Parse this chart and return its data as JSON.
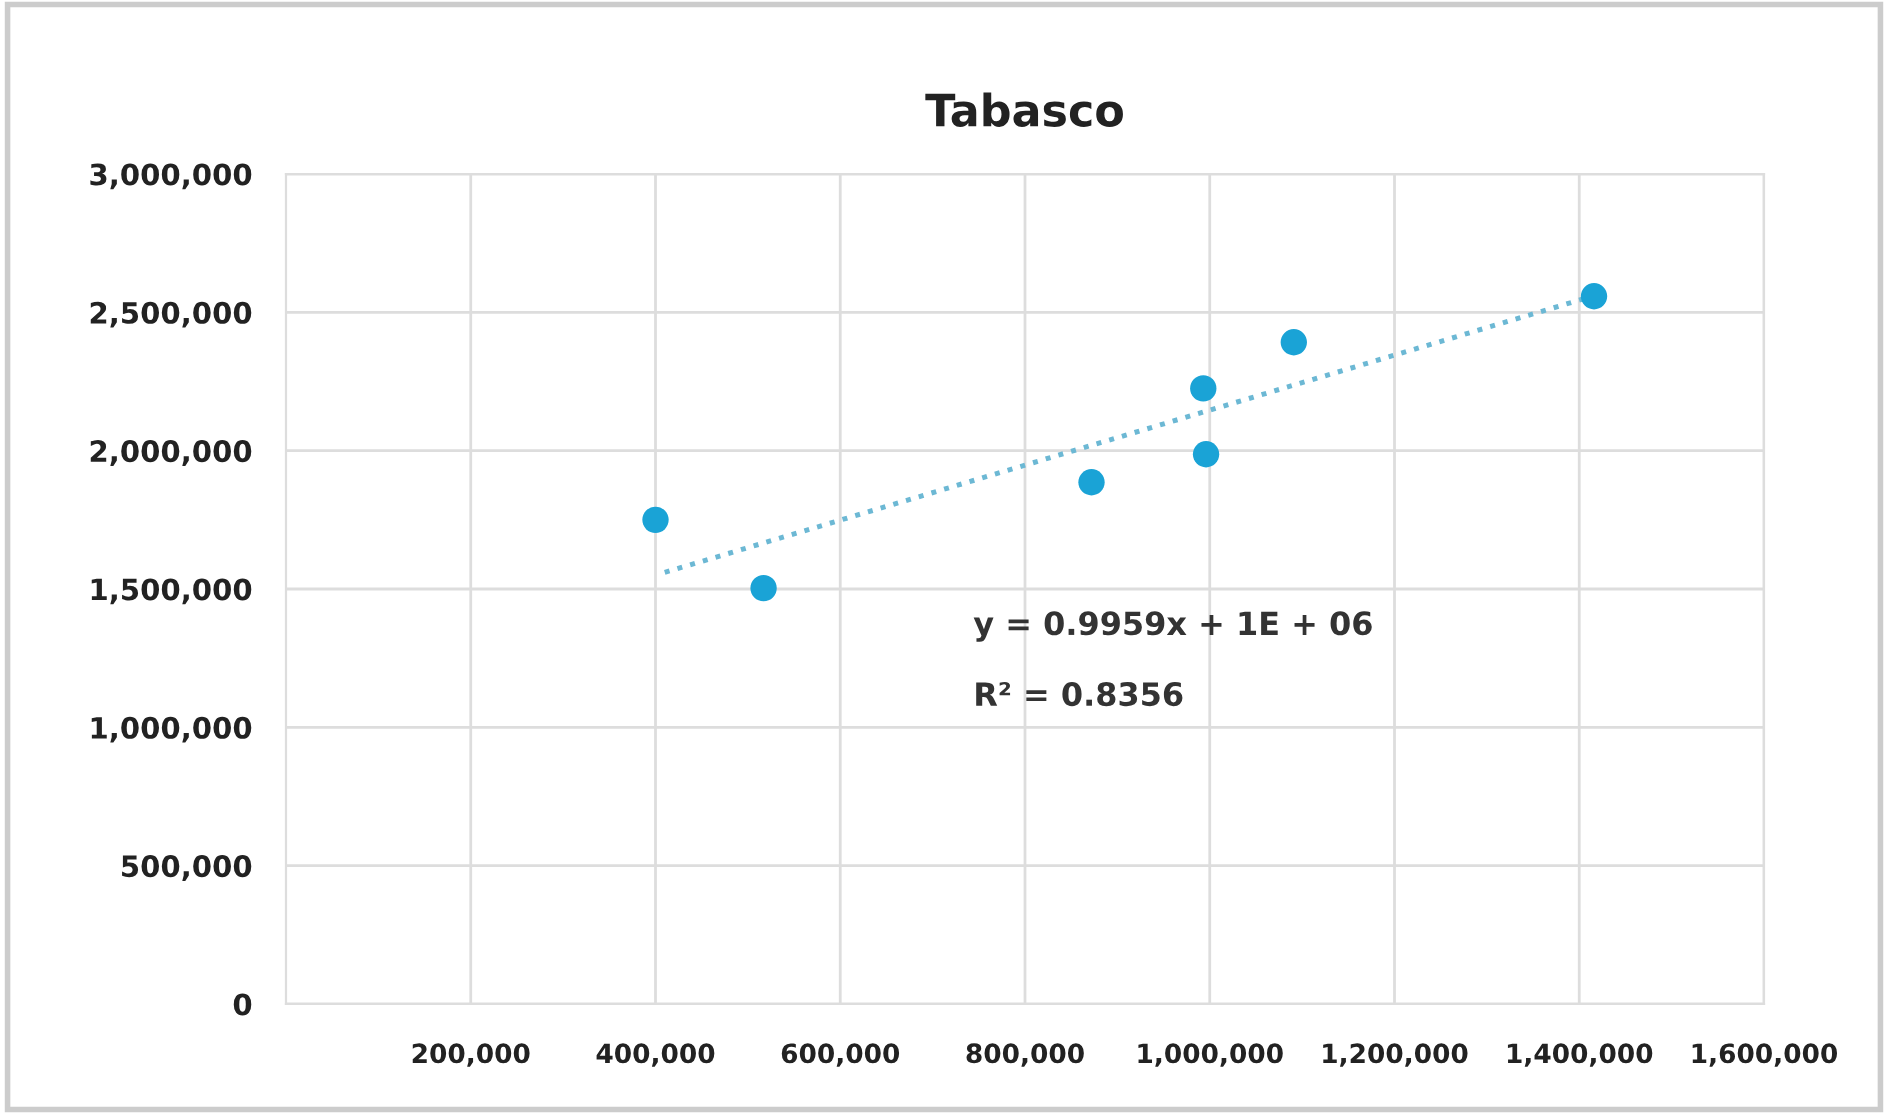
{
  "chart_data": {
    "type": "scatter",
    "title": "Tabasco",
    "series": [
      {
        "color": "#1aa3d6",
        "marker": "circle",
        "x": [
          400000,
          517000,
          872000,
          993000,
          996000,
          1091000,
          1416000
        ],
        "values": [
          1750000,
          1503000,
          1886000,
          2225000,
          1987000,
          2392000,
          2558000
        ]
      },
      {
        "type": "line",
        "color": "#6cb8d4",
        "marker": "none",
        "line_style": "dotted",
        "x": [
          410000,
          1416000
        ],
        "values": [
          1560000,
          2560000
        ]
      }
    ],
    "annotations": [
      "y = 0.9959x + 1E + 06",
      "R² = 0.8356"
    ],
    "xlim": [
      0,
      1600000
    ],
    "xticks": [
      {
        "value": 200000,
        "label": "200,000"
      },
      {
        "value": 400000,
        "label": "400,000"
      },
      {
        "value": 600000,
        "label": "600,000"
      },
      {
        "value": 800000,
        "label": "800,000"
      },
      {
        "value": 1000000,
        "label": "1,000,000"
      },
      {
        "value": 1200000,
        "label": "1,200,000"
      },
      {
        "value": 1400000,
        "label": "1,400,000"
      },
      {
        "value": 1600000,
        "label": "1,600,000"
      }
    ],
    "ylim": [
      0,
      3000000
    ],
    "yticks": [
      0,
      {
        "value": 500000,
        "label": "500,000"
      },
      {
        "value": 1000000,
        "label": "1,000,000"
      },
      {
        "value": 1500000,
        "label": "1,500,000"
      },
      {
        "value": 2000000,
        "label": "2,000,000"
      },
      {
        "value": 2500000,
        "label": "2,500,000"
      },
      {
        "value": 3000000,
        "label": "3,000,000"
      }
    ],
    "grid": true,
    "legend": false
  }
}
